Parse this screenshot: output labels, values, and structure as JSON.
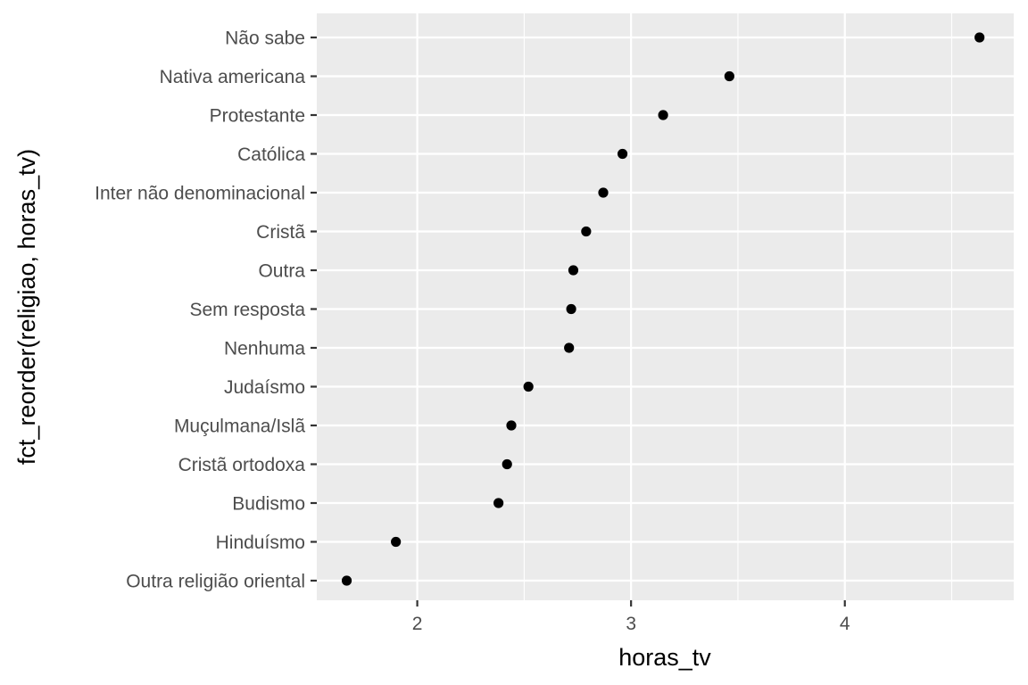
{
  "chart_data": {
    "type": "scatter",
    "title": "",
    "xlabel": "horas_tv",
    "ylabel": "fct_reorder(religiao, horas_tv)",
    "xlim": [
      1.53,
      4.79
    ],
    "x_ticks": [
      2,
      3,
      4
    ],
    "x_minor_ticks": [
      2.5,
      3.5,
      4.5
    ],
    "grid": true,
    "categories": [
      "Outra religião oriental",
      "Hinduísmo",
      "Budismo",
      "Cristã ortodoxa",
      "Muçulmana/Islã",
      "Judaísmo",
      "Nenhuma",
      "Sem resposta",
      "Outra",
      "Cristã",
      "Inter não denominacional",
      "Católica",
      "Protestante",
      "Nativa americana",
      "Não sabe"
    ],
    "values": [
      1.67,
      1.9,
      2.38,
      2.42,
      2.44,
      2.52,
      2.71,
      2.72,
      2.73,
      2.79,
      2.87,
      2.96,
      3.15,
      3.46,
      4.63
    ],
    "point_color": "#000000",
    "panel_color": "#EBEBEB"
  }
}
